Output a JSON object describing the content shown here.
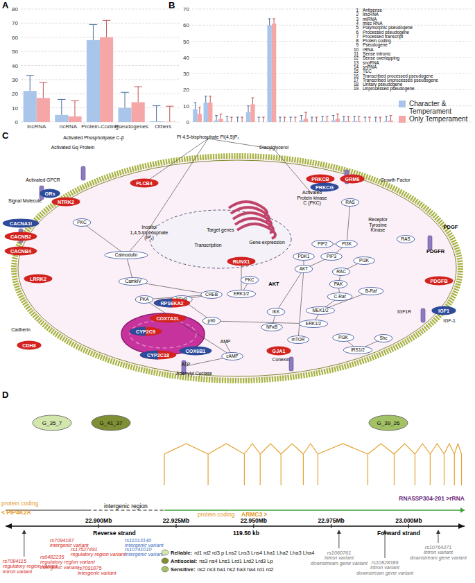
{
  "panel_labels": [
    "A",
    "B",
    "C",
    "D"
  ],
  "chart_data": [
    {
      "type": "bar",
      "categories": [
        "lncRNA",
        "ncRNA",
        "Protein-Coding",
        "Pseudogenes",
        "Others"
      ],
      "series": [
        {
          "color": "#a9c6ea",
          "values": [
            22,
            5,
            58,
            10,
            0.5
          ],
          "errors": [
            11,
            11,
            11,
            11,
            11
          ]
        },
        {
          "color": "#f5a6a6",
          "values": [
            17,
            4,
            60,
            14,
            0.2
          ],
          "errors": [
            11,
            11,
            12,
            11,
            11
          ]
        }
      ],
      "ylim": [
        0,
        80
      ],
      "yticks": [
        0,
        10,
        20,
        30,
        40,
        50,
        60,
        70,
        80
      ],
      "grid": true
    },
    {
      "type": "bar",
      "categories": [
        "1",
        "2",
        "3",
        "4",
        "5",
        "6",
        "7",
        "8",
        "9",
        "10",
        "11",
        "12",
        "13",
        "14",
        "15",
        "16",
        "17",
        "18",
        "19"
      ],
      "category_names": [
        "Antisense",
        "lincRNA",
        "miRNA",
        "misc RNA",
        "Polymorphic pseudogene",
        "Processed pseudogene",
        "Processed transcript",
        "Protein coding",
        "Pseudogene",
        "rRNA",
        "Sense intronic",
        "Sense overlapping",
        "snoRNA",
        "snRNA",
        "TEC",
        "Transcribed processed pseudogene",
        "Transcribed unprocessed pseudogene",
        "Unitary pseudogene",
        "Unprocessed pseudogene"
      ],
      "series": [
        {
          "name": "Character & Temperament",
          "color": "#a9c6ea",
          "values": [
            8,
            12,
            1,
            0.5,
            0,
            6,
            0,
            60,
            0,
            0,
            1,
            0,
            0.5,
            1,
            0.5,
            0.5,
            0,
            0,
            0.5
          ],
          "errors": [
            4,
            4,
            3,
            3,
            3,
            4,
            3,
            4,
            3,
            3,
            3,
            3,
            3,
            3,
            3,
            3,
            3,
            3,
            3
          ]
        },
        {
          "name": "Only Temperament",
          "color": "#f5a6a6",
          "values": [
            5,
            12,
            2,
            0,
            0,
            11,
            0,
            61,
            0,
            0,
            2,
            0,
            0.5,
            2,
            0.5,
            0.5,
            0,
            0,
            1
          ],
          "errors": [
            4,
            4,
            3,
            3,
            3,
            4,
            3,
            3,
            3,
            3,
            4,
            3,
            3,
            3,
            3,
            3,
            3,
            3,
            3
          ]
        }
      ],
      "ylim": [
        0,
        70
      ],
      "yticks": [
        0,
        10,
        20,
        30,
        40,
        50,
        60,
        70
      ],
      "grid": true,
      "tick_labels": "y",
      "legend": "right"
    }
  ],
  "pathway": {
    "nodes": [
      {
        "label": "Signal Molecule",
        "kind": "label"
      },
      {
        "label": "Activated GPCR",
        "kind": "label"
      },
      {
        "label": "ORs",
        "kind": "gene-blue"
      },
      {
        "label": "NTRK2",
        "kind": "gene-red"
      },
      {
        "label": "Activated Gq Protein",
        "kind": "label"
      },
      {
        "label": "Activated Phospholipase C-β",
        "kind": "label"
      },
      {
        "label": "PLCB4",
        "kind": "gene-red"
      },
      {
        "label": "PI 4,5-bisphosphate PI(4,5)P₂",
        "kind": "label"
      },
      {
        "label": "Diacylglycerol",
        "kind": "label"
      },
      {
        "label": "PRKCB",
        "kind": "gene-red"
      },
      {
        "label": "PRKCG",
        "kind": "gene-blue"
      },
      {
        "label": "GRM6",
        "kind": "gene-red"
      },
      {
        "label": "Activated\nProtein kinase\nC (PKC)",
        "kind": "label"
      },
      {
        "label": "Growth Factor",
        "kind": "label"
      },
      {
        "label": "RAS",
        "kind": "protein"
      },
      {
        "label": "Receptor\nTyrosine\nKinase",
        "kind": "label"
      },
      {
        "label": "CACNA1I",
        "kind": "gene-blue"
      },
      {
        "label": "CACNB2",
        "kind": "gene-red"
      },
      {
        "label": "CACNB4",
        "kind": "gene-red"
      },
      {
        "label": "PKC",
        "kind": "protein"
      },
      {
        "label": "Inositol\n1,4,5-triphosphate\n(IP₃)",
        "kind": "label"
      },
      {
        "label": "Calmodulin",
        "kind": "protein"
      },
      {
        "label": "CamkIV",
        "kind": "protein"
      },
      {
        "label": "RUNX1",
        "kind": "gene-red"
      },
      {
        "label": "Target genes",
        "kind": "label"
      },
      {
        "label": "Transcription",
        "kind": "label"
      },
      {
        "label": "Gene expression",
        "kind": "label"
      },
      {
        "label": "LRRK2",
        "kind": "gene-red"
      },
      {
        "label": "Cadherin",
        "kind": "label"
      },
      {
        "label": "CDH8",
        "kind": "gene-red"
      },
      {
        "label": "PKA",
        "kind": "protein"
      },
      {
        "label": "NFκB",
        "kind": "protein"
      },
      {
        "label": "CREB",
        "kind": "protein"
      },
      {
        "label": "ERK1/2",
        "kind": "protein"
      },
      {
        "label": "PKC",
        "kind": "protein"
      },
      {
        "label": "PDK1",
        "kind": "protein"
      },
      {
        "label": "PIP3",
        "kind": "protein"
      },
      {
        "label": "AKT",
        "kind": "protein"
      },
      {
        "label": "PI3K",
        "kind": "protein"
      },
      {
        "label": "PIP2",
        "kind": "protein"
      },
      {
        "label": "RAC",
        "kind": "protein"
      },
      {
        "label": "PAK",
        "kind": "protein"
      },
      {
        "label": "C-Raf",
        "kind": "protein"
      },
      {
        "label": "B-Raf",
        "kind": "protein"
      },
      {
        "label": "MEK1/2",
        "kind": "protein"
      },
      {
        "label": "ERK1/2",
        "kind": "protein"
      },
      {
        "label": "IKK",
        "kind": "protein"
      },
      {
        "label": "NFκB",
        "kind": "protein"
      },
      {
        "label": "mTOR",
        "kind": "protein"
      },
      {
        "label": "AKT",
        "kind": "label-bold"
      },
      {
        "label": "p90",
        "kind": "protein"
      },
      {
        "label": "RPS6KA2",
        "kind": "gene-mixed"
      },
      {
        "label": "COX7A2L",
        "kind": "gene-red"
      },
      {
        "label": "CYP2C9",
        "kind": "gene-mixed"
      },
      {
        "label": "CYP2C18",
        "kind": "gene-mixed"
      },
      {
        "label": "COX6B1",
        "kind": "gene-blue"
      },
      {
        "label": "AMP",
        "kind": "label"
      },
      {
        "label": "cAMP",
        "kind": "protein"
      },
      {
        "label": "ATP",
        "kind": "label"
      },
      {
        "label": "Adenylyl Cyclase",
        "kind": "label"
      },
      {
        "label": "GJA1",
        "kind": "gene-red"
      },
      {
        "label": "Conexin",
        "kind": "label"
      },
      {
        "label": "IGF1R",
        "kind": "label"
      },
      {
        "label": "IGF1",
        "kind": "gene-blue"
      },
      {
        "label": "IGF-1",
        "kind": "label"
      },
      {
        "label": "Shc",
        "kind": "protein"
      },
      {
        "label": "IRS1/2",
        "kind": "protein"
      },
      {
        "label": "PI3K",
        "kind": "protein"
      },
      {
        "label": "PDGF",
        "kind": "label-bold"
      },
      {
        "label": "PDGFR",
        "kind": "label-bold"
      },
      {
        "label": "PDGFB",
        "kind": "gene-red"
      },
      {
        "label": "PI3K",
        "kind": "protein"
      },
      {
        "label": "RAS",
        "kind": "protein"
      }
    ]
  },
  "genome": {
    "xlim": [
      22.87,
      23.018
    ],
    "xticks": [
      {
        "value": 22.9,
        "label": "22.900Mb"
      },
      {
        "value": 22.925,
        "label": "22.925Mb"
      },
      {
        "value": 22.95,
        "label": "22.950Mb"
      },
      {
        "value": 22.975,
        "label": "22.975Mb"
      },
      {
        "value": 23.0,
        "label": "23.000Mb"
      }
    ],
    "reverse_label": "Reverse strand",
    "span_label": "119.50 kb",
    "forward_label": "Forward strand",
    "intergenic_label": "intergenic region",
    "transcript": "RNA5SP304-201 >rRNA",
    "genes": [
      {
        "biotype": "protein coding",
        "name": "< PIP4K2A",
        "start": 22.87,
        "end": 22.8965
      },
      {
        "biotype": "protein coding",
        "name": "ARMC3 >",
        "start": 22.9212,
        "end": 23.018
      }
    ],
    "exons": [
      22.9212,
      22.9353,
      22.947,
      22.9521,
      22.9588,
      22.966,
      22.9707,
      22.9868,
      22.9953,
      23.002,
      23.0069,
      23.0114,
      23.0147,
      23.017
    ],
    "clusters": [
      {
        "label": "G_35_7",
        "group": 0
      },
      {
        "label": "G_41_37",
        "group": 1
      },
      {
        "label": "G_39_26",
        "group": 2
      }
    ],
    "groups": [
      {
        "name": "Reliable:",
        "members": "rd1 rd2 rd3 p Lns2 Lns3 Lns4 Lha1 Lha2 Lha3 Lha4",
        "color": "#d3e6ad"
      },
      {
        "name": "Antisocial:",
        "members": "ns3 ns4 Lns1 Lrd1 Lrd2 Lrd3 Lp",
        "color": "#7f8f35"
      },
      {
        "name": "Sensitive:",
        "members": "ns2 ns3 ha1 hs2 ha3 ha4 rd1 rd2",
        "color": "#a3c266"
      }
    ],
    "snps": [
      {
        "id": "rs7084115",
        "annotation": [
          "regulatory region variant",
          "intron variant"
        ],
        "color": "#d42a1f",
        "position": 22.876
      },
      {
        "id": "rs7094187",
        "annotation": [
          "intergenic variant"
        ],
        "color": "#d42a1f"
      },
      {
        "id": "rs17527491",
        "annotation": [
          "regulatory region variant"
        ],
        "color": "#d42a1f"
      },
      {
        "id": "rs6482235",
        "annotation": [
          "regulatory region variant",
          "intergenic variant"
        ],
        "color": "#d42a1f"
      },
      {
        "id": "rs7091875",
        "annotation": [
          "intergenic variant"
        ],
        "color": "#d42a1f"
      },
      {
        "id": "rs11013140",
        "annotation": [
          "intergenic variant"
        ],
        "color": "#3d6fc0"
      },
      {
        "id": "rs10741010",
        "annotation": [
          "intergenic variant"
        ],
        "color": "#3d6fc0"
      },
      {
        "id": "rs1060761",
        "annotation": [
          "intron variant",
          "downstream gene variant"
        ],
        "color": "#777777",
        "position": 22.9775
      },
      {
        "id": "rs10828389",
        "annotation": [
          "intron variant",
          "downstream gene variant"
        ],
        "color": "#777777",
        "position": 22.9923
      },
      {
        "id": "rs10764371",
        "annotation": [
          "intron variant",
          "downstream gene variant"
        ],
        "color": "#777777",
        "position": 23.0095
      }
    ]
  }
}
